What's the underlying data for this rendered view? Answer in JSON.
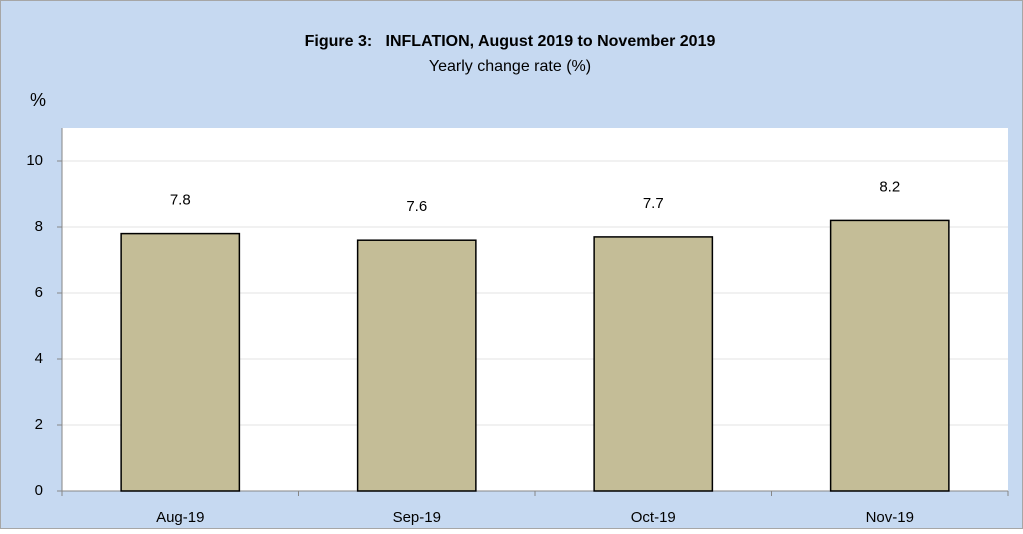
{
  "chart_data": {
    "type": "bar",
    "title": "Figure 3:   INFLATION, August 2019 to November 2019",
    "subtitle": "Yearly change rate (%)",
    "y_label": "%",
    "categories": [
      "Aug-19",
      "Sep-19",
      "Oct-19",
      "Nov-19"
    ],
    "values": [
      7.8,
      7.6,
      7.7,
      8.2
    ],
    "color": "#c4bd97",
    "ylim": [
      0,
      11
    ],
    "yticks": [
      0,
      2,
      4,
      6,
      8,
      10
    ],
    "grid": true
  }
}
